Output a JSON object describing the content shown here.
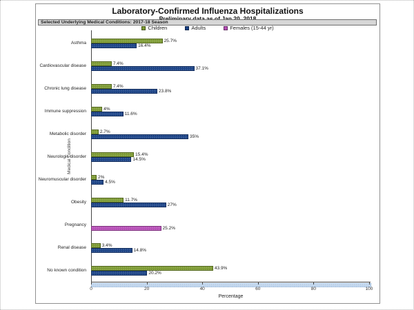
{
  "title": "Laboratory-Confirmed Influenza Hospitalizations",
  "subtitle": "Preliminary data as of Jan 20, 2018",
  "header_bar": "Selected Underlying Medical Conditions: 2017-18 Season",
  "colors": {
    "children": "#7d9a33",
    "children_border": "#53671d",
    "adults": "#1b4386",
    "adults_border": "#0e2a5c",
    "females": "#b74fb7",
    "females_border": "#7c2f7c",
    "header_bg": "#d6d6d6",
    "scroll_band": "#bcd3ec"
  },
  "chart_data": {
    "type": "bar",
    "orientation": "horizontal",
    "title": "Laboratory-Confirmed Influenza Hospitalizations",
    "subtitle": "Preliminary data as of Jan 20, 2018",
    "xlabel": "Percentage",
    "ylabel": "Medical Condition",
    "xlim": [
      0,
      100
    ],
    "xticks": [
      0,
      20,
      40,
      60,
      80,
      100
    ],
    "grid": false,
    "legend_position": "top",
    "categories": [
      "Asthma",
      "Cardiovascular disease",
      "Chronic lung disease",
      "Immune suppression",
      "Metabolic disorder",
      "Neurologic disorder",
      "Neuromuscular disorder",
      "Obesity",
      "Pregnancy",
      "Renal disease",
      "No known condition"
    ],
    "series": [
      {
        "name": "Children",
        "color": "#7d9a33",
        "border": "#53671d",
        "values": [
          25.7,
          7.4,
          7.4,
          4,
          2.7,
          15.4,
          2,
          11.7,
          null,
          3.4,
          43.9
        ]
      },
      {
        "name": "Adults",
        "color": "#1b4386",
        "border": "#0e2a5c",
        "values": [
          16.4,
          37.1,
          23.8,
          11.6,
          35,
          14.5,
          4.5,
          27,
          null,
          14.8,
          20.2
        ]
      },
      {
        "name": "Females (15-44 yr)",
        "color": "#b74fb7",
        "border": "#7c2f7c",
        "values": [
          null,
          null,
          null,
          null,
          null,
          null,
          null,
          null,
          25.2,
          null,
          null
        ]
      }
    ]
  }
}
